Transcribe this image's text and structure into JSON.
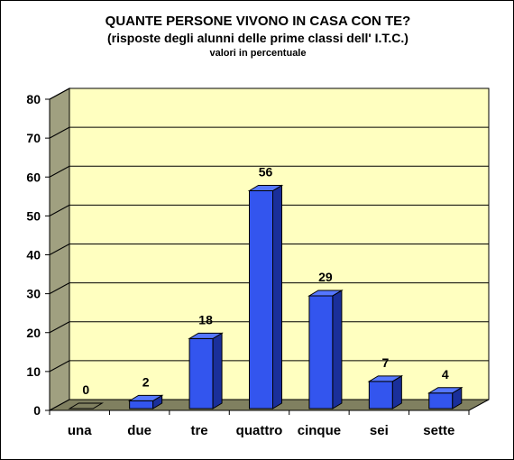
{
  "chart_data": {
    "type": "bar",
    "title": "QUANTE PERSONE VIVONO IN CASA CON TE?",
    "subtitle": "(risposte degli alunni delle prime classi dell' I.T.C.)",
    "note": "valori in percentuale",
    "categories": [
      "una",
      "due",
      "tre",
      "quattro",
      "cinque",
      "sei",
      "sette"
    ],
    "values": [
      0,
      2,
      18,
      56,
      29,
      7,
      4
    ],
    "data_labels": [
      "0",
      "2",
      "18",
      "56",
      "29",
      "7",
      "4"
    ],
    "ylim": [
      0,
      80
    ],
    "yticks": [
      "0",
      "10",
      "20",
      "30",
      "40",
      "50",
      "60",
      "70",
      "80"
    ],
    "grid": true,
    "legend": "none",
    "colors": {
      "bar_front": "#3355ee",
      "bar_top": "#5577ff",
      "bar_side": "#1a2f9a",
      "plot_back": "#ffffc0",
      "plot_wall": "#a0a080",
      "plot_floor": "#808060"
    }
  }
}
